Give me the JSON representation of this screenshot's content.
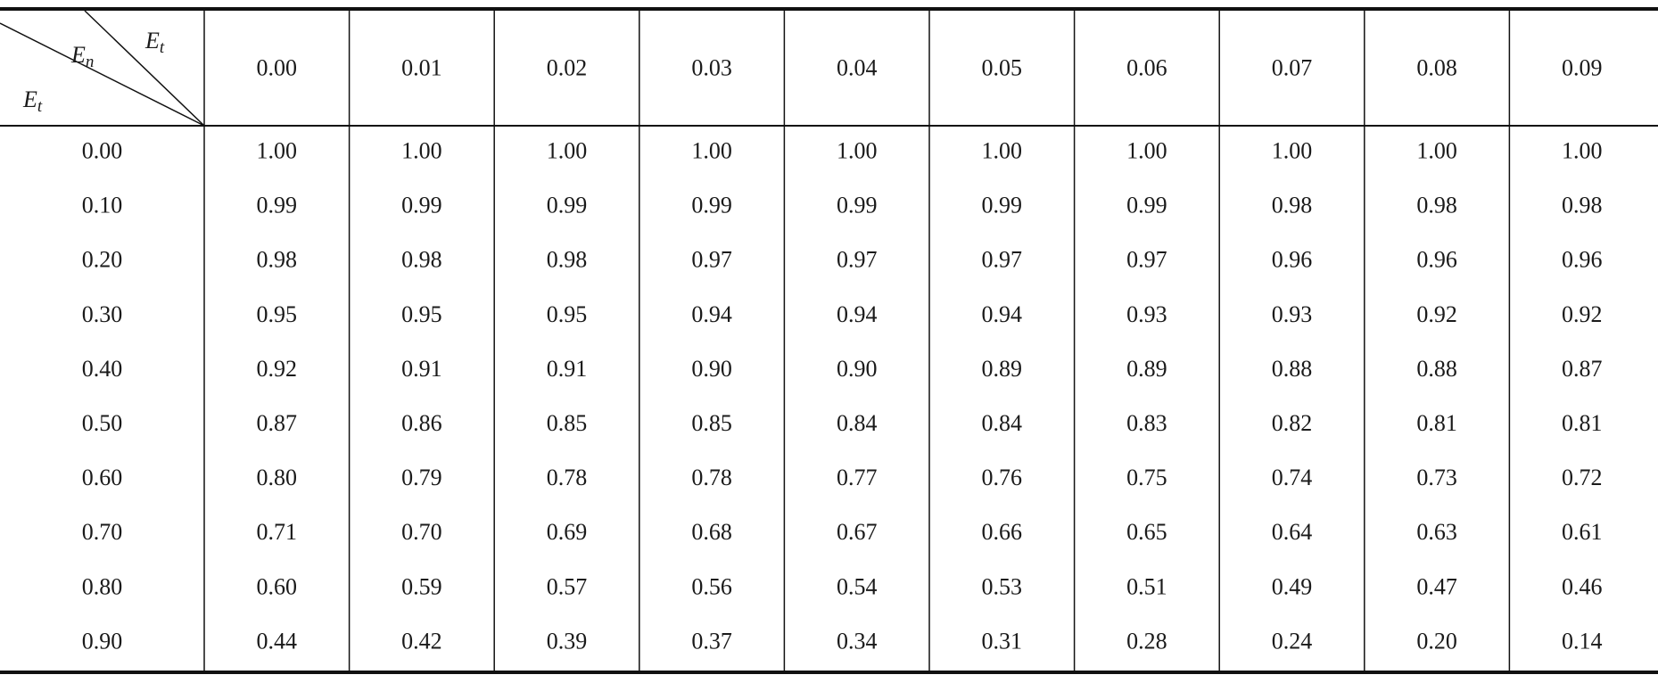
{
  "corner": {
    "top": {
      "base": "E",
      "sub": "t"
    },
    "middle": {
      "base": "E",
      "sub": "n"
    },
    "bottom": {
      "base": "E",
      "sub": "t"
    }
  },
  "columns": [
    "0.00",
    "0.01",
    "0.02",
    "0.03",
    "0.04",
    "0.05",
    "0.06",
    "0.07",
    "0.08",
    "0.09"
  ],
  "rows": [
    {
      "label": "0.00",
      "values": [
        "1.00",
        "1.00",
        "1.00",
        "1.00",
        "1.00",
        "1.00",
        "1.00",
        "1.00",
        "1.00",
        "1.00"
      ]
    },
    {
      "label": "0.10",
      "values": [
        "0.99",
        "0.99",
        "0.99",
        "0.99",
        "0.99",
        "0.99",
        "0.99",
        "0.98",
        "0.98",
        "0.98"
      ]
    },
    {
      "label": "0.20",
      "values": [
        "0.98",
        "0.98",
        "0.98",
        "0.97",
        "0.97",
        "0.97",
        "0.97",
        "0.96",
        "0.96",
        "0.96"
      ]
    },
    {
      "label": "0.30",
      "values": [
        "0.95",
        "0.95",
        "0.95",
        "0.94",
        "0.94",
        "0.94",
        "0.93",
        "0.93",
        "0.92",
        "0.92"
      ]
    },
    {
      "label": "0.40",
      "values": [
        "0.92",
        "0.91",
        "0.91",
        "0.90",
        "0.90",
        "0.89",
        "0.89",
        "0.88",
        "0.88",
        "0.87"
      ]
    },
    {
      "label": "0.50",
      "values": [
        "0.87",
        "0.86",
        "0.85",
        "0.85",
        "0.84",
        "0.84",
        "0.83",
        "0.82",
        "0.81",
        "0.81"
      ]
    },
    {
      "label": "0.60",
      "values": [
        "0.80",
        "0.79",
        "0.78",
        "0.78",
        "0.77",
        "0.76",
        "0.75",
        "0.74",
        "0.73",
        "0.72"
      ]
    },
    {
      "label": "0.70",
      "values": [
        "0.71",
        "0.70",
        "0.69",
        "0.68",
        "0.67",
        "0.66",
        "0.65",
        "0.64",
        "0.63",
        "0.61"
      ]
    },
    {
      "label": "0.80",
      "values": [
        "0.60",
        "0.59",
        "0.57",
        "0.56",
        "0.54",
        "0.53",
        "0.51",
        "0.49",
        "0.47",
        "0.46"
      ]
    },
    {
      "label": "0.90",
      "values": [
        "0.44",
        "0.42",
        "0.39",
        "0.37",
        "0.34",
        "0.31",
        "0.28",
        "0.24",
        "0.20",
        "0.14"
      ]
    }
  ]
}
